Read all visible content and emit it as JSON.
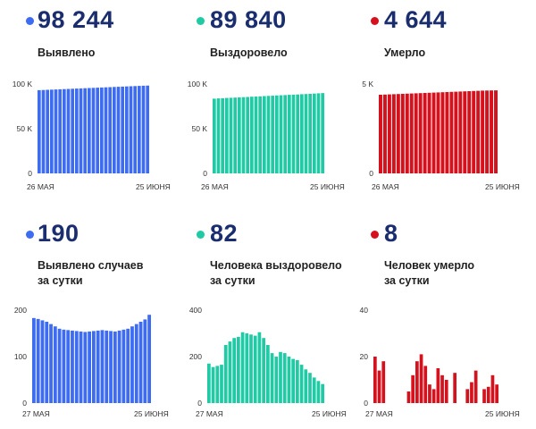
{
  "panels": [
    {
      "dot_color": "#3d6bf2",
      "big_number": "98 244",
      "label_line1": "Выявлено",
      "label_line2": "",
      "chart_data": {
        "type": "bar",
        "color": "#3d6bf2",
        "y_ticks": [
          "0",
          "50 K",
          "100 K"
        ],
        "y_tick_values": [
          0,
          50000,
          100000
        ],
        "ylim": [
          0,
          100000
        ],
        "x_labels": [
          "26 МАЯ",
          "25 ИЮНЯ"
        ],
        "values": [
          93100,
          93300,
          93500,
          93700,
          93900,
          94100,
          94300,
          94500,
          94700,
          94900,
          95100,
          95300,
          95500,
          95700,
          95900,
          96100,
          96300,
          96500,
          96700,
          96900,
          97100,
          97300,
          97500,
          97700,
          97900,
          98100,
          98244
        ]
      }
    },
    {
      "dot_color": "#1fcaa5",
      "big_number": "89 840",
      "label_line1": "Выздоровело",
      "label_line2": "",
      "chart_data": {
        "type": "bar",
        "color": "#1fcaa5",
        "y_ticks": [
          "0",
          "50 K",
          "100 K"
        ],
        "y_tick_values": [
          0,
          50000,
          100000
        ],
        "ylim": [
          0,
          100000
        ],
        "x_labels": [
          "26 МАЯ",
          "25 ИЮНЯ"
        ],
        "values": [
          83600,
          83900,
          84100,
          84400,
          84600,
          84800,
          85000,
          85300,
          85500,
          85800,
          86000,
          86200,
          86500,
          86700,
          86900,
          87200,
          87400,
          87600,
          87900,
          88100,
          88300,
          88600,
          88800,
          89000,
          89300,
          89600,
          89840
        ]
      }
    },
    {
      "dot_color": "#d4111c",
      "big_number": "4 644",
      "label_line1": "Умерло",
      "label_line2": "",
      "chart_data": {
        "type": "bar",
        "color": "#d4111c",
        "y_ticks": [
          "0",
          "5 K"
        ],
        "y_tick_values": [
          0,
          5000
        ],
        "ylim": [
          0,
          5000
        ],
        "x_labels": [
          "26 МАЯ",
          "25 ИЮНЯ"
        ],
        "values": [
          4400,
          4410,
          4420,
          4430,
          4440,
          4450,
          4460,
          4470,
          4480,
          4490,
          4500,
          4510,
          4520,
          4530,
          4540,
          4550,
          4560,
          4570,
          4580,
          4590,
          4600,
          4610,
          4620,
          4630,
          4635,
          4640,
          4644
        ]
      }
    },
    {
      "dot_color": "#3d6bf2",
      "big_number": "190",
      "label_line1": "Выявлено случаев",
      "label_line2": "за сутки",
      "chart_data": {
        "type": "bar",
        "color": "#3d6bf2",
        "y_ticks": [
          "0",
          "100",
          "200"
        ],
        "y_tick_values": [
          0,
          100,
          200
        ],
        "ylim": [
          0,
          200
        ],
        "x_labels": [
          "27 МАЯ",
          "25 ИЮНЯ"
        ],
        "values": [
          183,
          181,
          178,
          175,
          170,
          165,
          160,
          158,
          157,
          156,
          155,
          154,
          153,
          154,
          155,
          156,
          157,
          156,
          155,
          154,
          156,
          158,
          160,
          165,
          170,
          175,
          180,
          190
        ]
      }
    },
    {
      "dot_color": "#1fcaa5",
      "big_number": "82",
      "label_line1": "Человека выздоровело",
      "label_line2": "за сутки",
      "chart_data": {
        "type": "bar",
        "color": "#1fcaa5",
        "y_ticks": [
          "0",
          "200",
          "400"
        ],
        "y_tick_values": [
          0,
          200,
          400
        ],
        "ylim": [
          0,
          400
        ],
        "x_labels": [
          "27 МАЯ",
          "25 ИЮНЯ"
        ],
        "values": [
          170,
          155,
          160,
          165,
          250,
          265,
          280,
          285,
          305,
          300,
          295,
          290,
          305,
          280,
          250,
          215,
          200,
          220,
          215,
          200,
          190,
          185,
          165,
          145,
          130,
          110,
          95,
          82
        ]
      }
    },
    {
      "dot_color": "#d4111c",
      "big_number": "8",
      "label_line1": "Человек умерло",
      "label_line2": "за сутки",
      "chart_data": {
        "type": "bar",
        "color": "#d4111c",
        "y_ticks": [
          "0",
          "20",
          "40"
        ],
        "y_tick_values": [
          0,
          20,
          40
        ],
        "ylim": [
          0,
          40
        ],
        "x_labels": [
          "27 МАЯ",
          "25 ИЮНЯ"
        ],
        "values": [
          20,
          14,
          18,
          0,
          0,
          0,
          0,
          0,
          5,
          12,
          18,
          21,
          16,
          8,
          6,
          15,
          12,
          10,
          0,
          13,
          0,
          0,
          6,
          9,
          14,
          0,
          6,
          7,
          12,
          8
        ]
      }
    }
  ]
}
